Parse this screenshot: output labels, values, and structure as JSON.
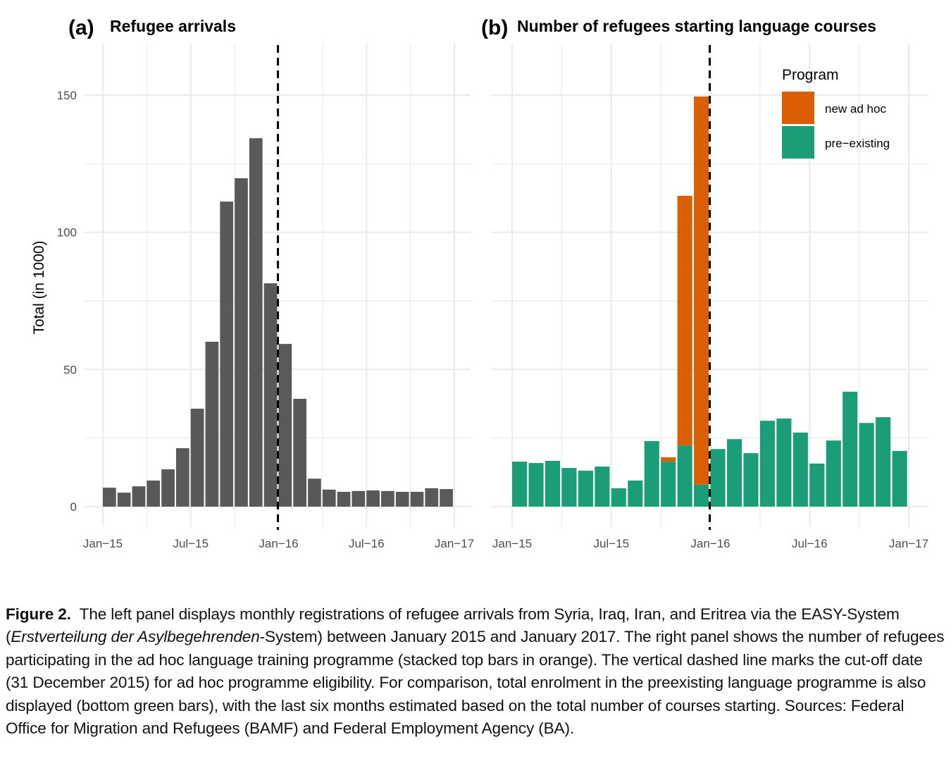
{
  "chart_data": [
    {
      "type": "bar",
      "panel_tag": "(a)",
      "title": "Refugee arrivals",
      "xlabel": "",
      "ylabel": "Total (in 1000)",
      "ylim": [
        0,
        165
      ],
      "yticks": [
        0,
        50,
        100,
        150
      ],
      "xticks": [
        "Jan−15",
        "Jul−15",
        "Jan−16",
        "Jul−16",
        "Jan−17"
      ],
      "grid": true,
      "cutoff_line": {
        "at": "Jan-16",
        "style": "dashed"
      },
      "categories": [
        "Jan-15",
        "Feb-15",
        "Mar-15",
        "Apr-15",
        "May-15",
        "Jun-15",
        "Jul-15",
        "Aug-15",
        "Sep-15",
        "Oct-15",
        "Nov-15",
        "Dec-15",
        "Jan-16",
        "Feb-16",
        "Mar-16",
        "Apr-16",
        "May-16",
        "Jun-16",
        "Jul-16",
        "Aug-16",
        "Sep-16",
        "Oct-16",
        "Nov-16",
        "Dec-16"
      ],
      "values": [
        6.9,
        5.1,
        7.4,
        9.5,
        13.6,
        21.3,
        35.7,
        60.1,
        111.2,
        119.7,
        134.3,
        81.4,
        59.3,
        39.3,
        10.2,
        6.2,
        5.4,
        5.7,
        5.9,
        5.7,
        5.4,
        5.4,
        6.7,
        6.4
      ],
      "color": "#595959"
    },
    {
      "type": "bar",
      "stacked": true,
      "panel_tag": "(b)",
      "title": "Number of refugees starting language courses",
      "xlabel": "",
      "ylabel": "",
      "ylim": [
        0,
        165
      ],
      "yticks": [
        0,
        50,
        100,
        150
      ],
      "xticks": [
        "Jan−15",
        "Jul−15",
        "Jan−16",
        "Jul−16",
        "Jan−17"
      ],
      "grid": true,
      "cutoff_line": {
        "at": "Jan-16",
        "style": "dashed"
      },
      "legend": {
        "title": "Program",
        "position": "top-right"
      },
      "categories": [
        "Jan-15",
        "Feb-15",
        "Mar-15",
        "Apr-15",
        "May-15",
        "Jun-15",
        "Jul-15",
        "Aug-15",
        "Sep-15",
        "Oct-15",
        "Nov-15",
        "Dec-15",
        "Jan-16",
        "Feb-16",
        "Mar-16",
        "Apr-16",
        "May-16",
        "Jun-16",
        "Jul-16",
        "Aug-16",
        "Sep-16",
        "Oct-16",
        "Nov-16",
        "Dec-16"
      ],
      "series": [
        {
          "name": "pre−existing",
          "color": "#1B9E77",
          "values": [
            16.4,
            15.9,
            16.7,
            14.1,
            13.1,
            14.6,
            6.7,
            9.5,
            23.9,
            16.4,
            22.3,
            8.0,
            21.0,
            24.6,
            19.5,
            31.3,
            32.1,
            27.0,
            15.7,
            24.1,
            41.9,
            30.5,
            32.6,
            20.3
          ]
        },
        {
          "name": "new ad hoc",
          "color": "#D95F02",
          "values": [
            0,
            0,
            0,
            0,
            0,
            0,
            0,
            0,
            0,
            1.6,
            91.0,
            141.5,
            0,
            0,
            0,
            0,
            0,
            0,
            0,
            0,
            0,
            0,
            0,
            0
          ]
        }
      ]
    }
  ],
  "caption": {
    "label": "Figure 2.",
    "part1": "The left panel displays monthly registrations of refugee arrivals from Syria, Iraq, Iran, and Eritrea via the EASY-System (",
    "italic": "Erstverteilung der Asylbegehrenden",
    "part2": "-System) between January 2015 and January 2017. The right panel shows the number of refugees participating in the ad hoc language training programme (stacked top bars in orange). The vertical dashed line marks the cut-off date (31 December 2015) for ad hoc programme eligibility. For comparison, total enrolment in the preexisting language programme is also displayed (bottom green bars), with the last six months estimated based on the total number of courses starting. Sources: Federal Office for Migration and Refugees (BAMF) and Federal Employment Agency (BA)."
  }
}
